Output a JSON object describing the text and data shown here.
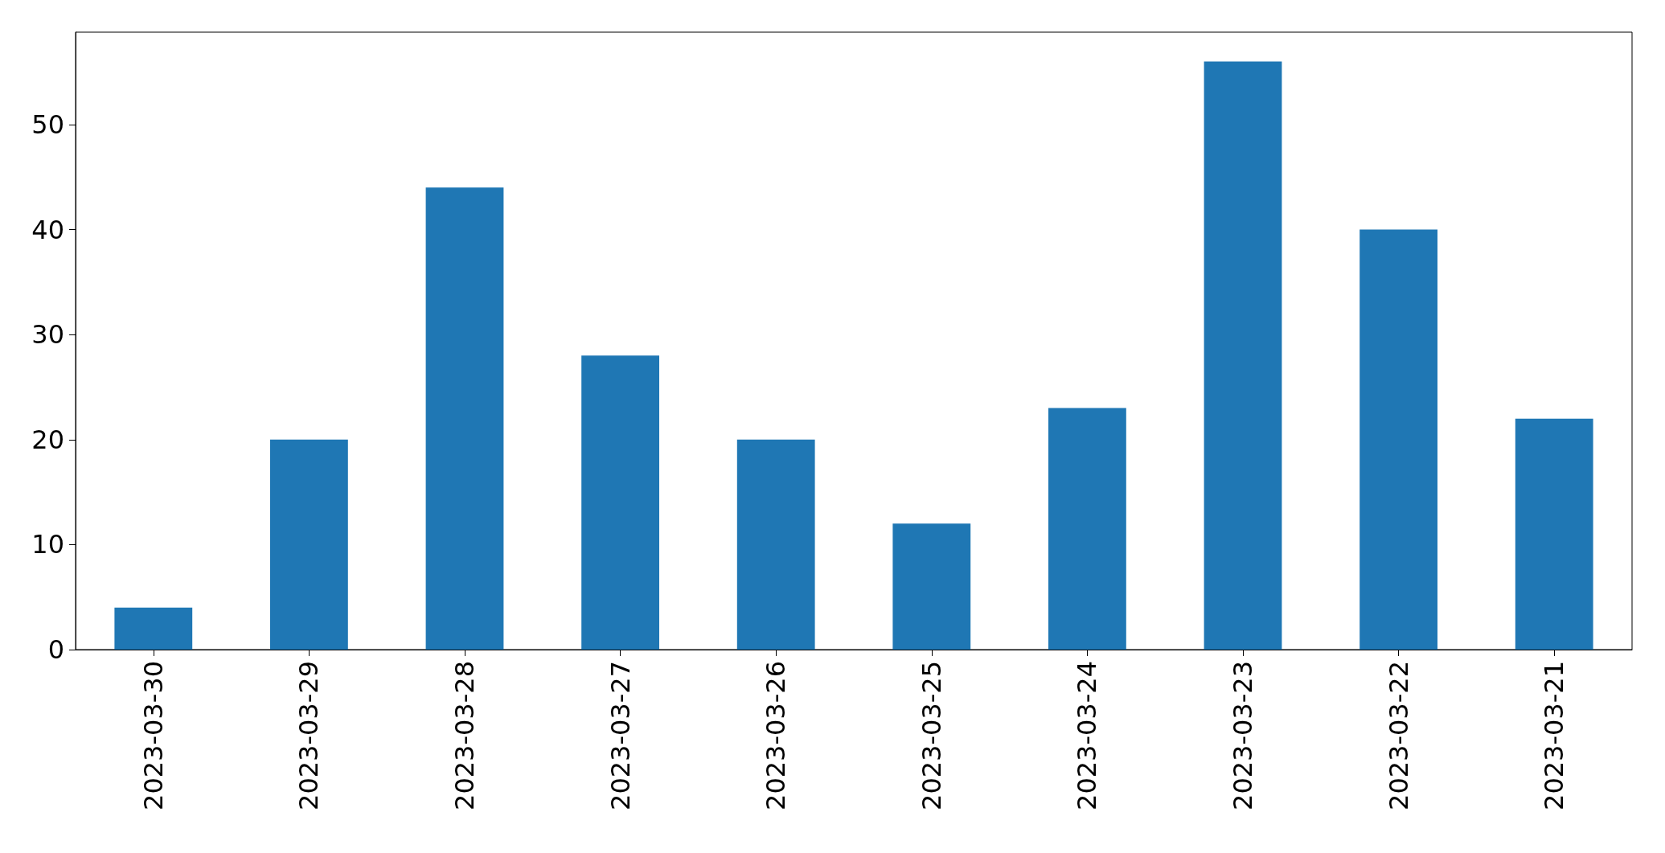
{
  "chart_data": {
    "type": "bar",
    "categories": [
      "2023-03-30",
      "2023-03-29",
      "2023-03-28",
      "2023-03-27",
      "2023-03-26",
      "2023-03-25",
      "2023-03-24",
      "2023-03-23",
      "2023-03-22",
      "2023-03-21"
    ],
    "values": [
      4,
      20,
      44,
      28,
      20,
      12,
      23,
      56,
      40,
      22
    ],
    "color": "#1f77b4",
    "ylim": [
      0,
      58.8
    ],
    "yticks": [
      0,
      10,
      20,
      30,
      40,
      50
    ]
  }
}
